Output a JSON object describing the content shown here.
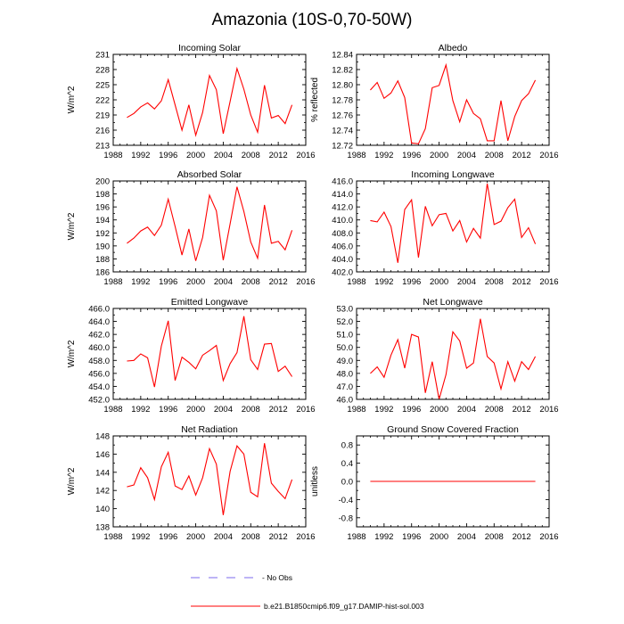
{
  "title": "Amazonia (10S-0,70-50W)",
  "line_color": "#ff0000",
  "obs_color": "#7b68ee",
  "legend": {
    "obs_label": "No Obs",
    "model_label": "b.e21.B1850cmip6.f09_g17.DAMIP-hist-sol.003"
  },
  "chart_data": [
    {
      "type": "line",
      "title": "Incoming Solar",
      "ylabel": "W/m^2",
      "xlim": [
        1988,
        2016
      ],
      "ylim": [
        213,
        231
      ],
      "xticks": [
        1988,
        1992,
        1996,
        2000,
        2004,
        2008,
        2012,
        2016
      ],
      "xtick_labels": [
        "1988",
        "1992",
        "1996",
        "2000",
        "2004",
        "2008",
        "2012",
        "2016"
      ],
      "yticks": [
        213,
        216,
        219,
        222,
        225,
        228,
        231
      ],
      "ytick_labels": [
        "213",
        "216",
        "219",
        "222",
        "225",
        "228",
        "231"
      ],
      "x": [
        1990,
        1991,
        1992,
        1993,
        1994,
        1995,
        1996,
        1997,
        1998,
        1999,
        2000,
        2001,
        2002,
        2003,
        2004,
        2005,
        2006,
        2007,
        2008,
        2009,
        2010,
        2011,
        2012,
        2013,
        2014
      ],
      "series": [
        {
          "values": [
            218.5,
            219.3,
            220.6,
            221.4,
            220.2,
            221.8,
            226.0,
            221.0,
            216.0,
            221.0,
            215.0,
            219.5,
            226.8,
            224.0,
            215.3,
            221.7,
            228.2,
            224.1,
            219.0,
            215.6,
            224.9,
            218.4,
            218.9,
            217.3,
            221.0
          ]
        }
      ]
    },
    {
      "type": "line",
      "title": "Albedo",
      "ylabel": "% reflected",
      "xlim": [
        1988,
        2016
      ],
      "ylim": [
        12.72,
        12.84
      ],
      "xticks": [
        1988,
        1992,
        1996,
        2000,
        2004,
        2008,
        2012,
        2016
      ],
      "xtick_labels": [
        "1988",
        "1992",
        "1996",
        "2000",
        "2004",
        "2008",
        "2012",
        "2016"
      ],
      "yticks": [
        12.72,
        12.74,
        12.76,
        12.78,
        12.8,
        12.82,
        12.84
      ],
      "ytick_labels": [
        "12.72",
        "12.74",
        "12.76",
        "12.78",
        "12.80",
        "12.82",
        "12.84"
      ],
      "x": [
        1990,
        1991,
        1992,
        1993,
        1994,
        1995,
        1996,
        1997,
        1998,
        1999,
        2000,
        2001,
        2002,
        2003,
        2004,
        2005,
        2006,
        2007,
        2008,
        2009,
        2010,
        2011,
        2012,
        2013,
        2014
      ],
      "series": [
        {
          "values": [
            12.793,
            12.803,
            12.782,
            12.789,
            12.805,
            12.783,
            12.723,
            12.722,
            12.742,
            12.796,
            12.799,
            12.826,
            12.779,
            12.751,
            12.78,
            12.762,
            12.755,
            12.726,
            12.726,
            12.779,
            12.726,
            12.758,
            12.779,
            12.788,
            12.806
          ]
        }
      ]
    },
    {
      "type": "line",
      "title": "Absorbed Solar",
      "ylabel": "W/m^2",
      "xlim": [
        1988,
        2016
      ],
      "ylim": [
        186,
        200
      ],
      "xticks": [
        1988,
        1992,
        1996,
        2000,
        2004,
        2008,
        2012,
        2016
      ],
      "xtick_labels": [
        "1988",
        "1992",
        "1996",
        "2000",
        "2004",
        "2008",
        "2012",
        "2016"
      ],
      "yticks": [
        186,
        188,
        190,
        192,
        194,
        196,
        198,
        200
      ],
      "ytick_labels": [
        "186",
        "188",
        "190",
        "192",
        "194",
        "196",
        "198",
        "200"
      ],
      "x": [
        1990,
        1991,
        1992,
        1993,
        1994,
        1995,
        1996,
        1997,
        1998,
        1999,
        2000,
        2001,
        2002,
        2003,
        2004,
        2005,
        2006,
        2007,
        2008,
        2009,
        2010,
        2011,
        2012,
        2013,
        2014
      ],
      "series": [
        {
          "values": [
            190.4,
            191.2,
            192.3,
            192.9,
            191.6,
            193.2,
            197.2,
            193.0,
            188.6,
            192.6,
            187.7,
            191.3,
            197.8,
            195.4,
            187.8,
            193.4,
            199.1,
            195.3,
            190.6,
            188.1,
            196.3,
            190.4,
            190.7,
            189.4,
            192.4
          ]
        }
      ]
    },
    {
      "type": "line",
      "title": "Incoming Longwave",
      "ylabel": "",
      "xlim": [
        1988,
        2016
      ],
      "ylim": [
        402.0,
        416.0
      ],
      "xticks": [
        1988,
        1992,
        1996,
        2000,
        2004,
        2008,
        2012,
        2016
      ],
      "xtick_labels": [
        "1988",
        "1992",
        "1996",
        "2000",
        "2004",
        "2008",
        "2012",
        "2016"
      ],
      "yticks": [
        402,
        404,
        406,
        408,
        410,
        412,
        414,
        416
      ],
      "ytick_labels": [
        "402.0",
        "404.0",
        "406.0",
        "408.0",
        "410.0",
        "412.0",
        "414.0",
        "416.0"
      ],
      "x": [
        1990,
        1991,
        1992,
        1993,
        1994,
        1995,
        1996,
        1997,
        1998,
        1999,
        2000,
        2001,
        2002,
        2003,
        2004,
        2005,
        2006,
        2007,
        2008,
        2009,
        2010,
        2011,
        2012,
        2013,
        2014
      ],
      "series": [
        {
          "values": [
            409.9,
            409.7,
            411.2,
            409.0,
            403.4,
            411.6,
            413.1,
            404.2,
            412.1,
            409.1,
            410.8,
            411.0,
            408.3,
            409.9,
            406.6,
            408.7,
            407.2,
            415.6,
            409.3,
            409.8,
            411.9,
            413.2,
            407.3,
            408.8,
            406.3
          ]
        }
      ]
    },
    {
      "type": "line",
      "title": "Emitted Longwave",
      "ylabel": "W/m^2",
      "xlim": [
        1988,
        2016
      ],
      "ylim": [
        452.0,
        466.0
      ],
      "xticks": [
        1988,
        1992,
        1996,
        2000,
        2004,
        2008,
        2012,
        2016
      ],
      "xtick_labels": [
        "1988",
        "1992",
        "1996",
        "2000",
        "2004",
        "2008",
        "2012",
        "2016"
      ],
      "yticks": [
        452,
        454,
        456,
        458,
        460,
        462,
        464,
        466
      ],
      "ytick_labels": [
        "452.0",
        "454.0",
        "456.0",
        "458.0",
        "460.0",
        "462.0",
        "464.0",
        "466.0"
      ],
      "x": [
        1990,
        1991,
        1992,
        1993,
        1994,
        1995,
        1996,
        1997,
        1998,
        1999,
        2000,
        2001,
        2002,
        2003,
        2004,
        2005,
        2006,
        2007,
        2008,
        2009,
        2010,
        2011,
        2012,
        2013,
        2014
      ],
      "series": [
        {
          "values": [
            457.9,
            458.0,
            459.0,
            458.4,
            453.9,
            460.2,
            464.1,
            454.9,
            458.5,
            457.7,
            456.7,
            458.8,
            459.5,
            460.3,
            454.9,
            457.5,
            459.2,
            464.8,
            458.1,
            456.6,
            460.5,
            460.6,
            456.3,
            457.1,
            455.5
          ]
        }
      ]
    },
    {
      "type": "line",
      "title": "Net Longwave",
      "ylabel": "",
      "xlim": [
        1988,
        2016
      ],
      "ylim": [
        46.0,
        53.0
      ],
      "xticks": [
        1988,
        1992,
        1996,
        2000,
        2004,
        2008,
        2012,
        2016
      ],
      "xtick_labels": [
        "1988",
        "1992",
        "1996",
        "2000",
        "2004",
        "2008",
        "2012",
        "2016"
      ],
      "yticks": [
        46,
        47,
        48,
        49,
        50,
        51,
        52,
        53
      ],
      "ytick_labels": [
        "46.0",
        "47.0",
        "48.0",
        "49.0",
        "50.0",
        "51.0",
        "52.0",
        "53.0"
      ],
      "x": [
        1990,
        1991,
        1992,
        1993,
        1994,
        1995,
        1996,
        1997,
        1998,
        1999,
        2000,
        2001,
        2002,
        2003,
        2004,
        2005,
        2006,
        2007,
        2008,
        2009,
        2010,
        2011,
        2012,
        2013,
        2014
      ],
      "series": [
        {
          "values": [
            48.0,
            48.5,
            47.7,
            49.4,
            50.6,
            48.4,
            51.0,
            50.8,
            46.5,
            48.9,
            46.0,
            47.9,
            51.2,
            50.5,
            48.4,
            48.8,
            52.2,
            49.3,
            48.8,
            46.8,
            48.9,
            47.4,
            48.9,
            48.3,
            49.3
          ]
        }
      ]
    },
    {
      "type": "line",
      "title": "Net Radiation",
      "ylabel": "W/m^2",
      "xlim": [
        1988,
        2016
      ],
      "ylim": [
        138,
        148
      ],
      "xticks": [
        1988,
        1992,
        1996,
        2000,
        2004,
        2008,
        2012,
        2016
      ],
      "xtick_labels": [
        "1988",
        "1992",
        "1996",
        "2000",
        "2004",
        "2008",
        "2012",
        "2016"
      ],
      "yticks": [
        138,
        140,
        142,
        144,
        146,
        148
      ],
      "ytick_labels": [
        "138",
        "140",
        "142",
        "144",
        "146",
        "148"
      ],
      "x": [
        1990,
        1991,
        1992,
        1993,
        1994,
        1995,
        1996,
        1997,
        1998,
        1999,
        2000,
        2001,
        2002,
        2003,
        2004,
        2005,
        2006,
        2007,
        2008,
        2009,
        2010,
        2011,
        2012,
        2013,
        2014
      ],
      "series": [
        {
          "values": [
            142.4,
            142.6,
            144.5,
            143.4,
            141.0,
            144.6,
            146.2,
            142.5,
            142.1,
            143.6,
            141.5,
            143.4,
            146.6,
            144.9,
            139.3,
            144.1,
            146.9,
            146.0,
            141.8,
            141.3,
            147.2,
            142.8,
            141.9,
            141.1,
            143.2
          ]
        }
      ]
    },
    {
      "type": "line",
      "title": "Ground Snow Covered Fraction",
      "ylabel": "unitless",
      "xlim": [
        1988,
        2016
      ],
      "ylim": [
        -1.0,
        1.0
      ],
      "xticks": [
        1988,
        1992,
        1996,
        2000,
        2004,
        2008,
        2012,
        2016
      ],
      "xtick_labels": [
        "1988",
        "1992",
        "1996",
        "2000",
        "2004",
        "2008",
        "2012",
        "2016"
      ],
      "yticks": [
        -0.8,
        -0.4,
        0.0,
        0.4,
        0.8
      ],
      "ytick_labels": [
        "-0.8",
        "-0.4",
        "0.0",
        "0.4",
        "0.8"
      ],
      "x": [
        1990,
        1991,
        1992,
        1993,
        1994,
        1995,
        1996,
        1997,
        1998,
        1999,
        2000,
        2001,
        2002,
        2003,
        2004,
        2005,
        2006,
        2007,
        2008,
        2009,
        2010,
        2011,
        2012,
        2013,
        2014
      ],
      "series": [
        {
          "values": [
            0,
            0,
            0,
            0,
            0,
            0,
            0,
            0,
            0,
            0,
            0,
            0,
            0,
            0,
            0,
            0,
            0,
            0,
            0,
            0,
            0,
            0,
            0,
            0,
            0
          ]
        }
      ]
    }
  ]
}
